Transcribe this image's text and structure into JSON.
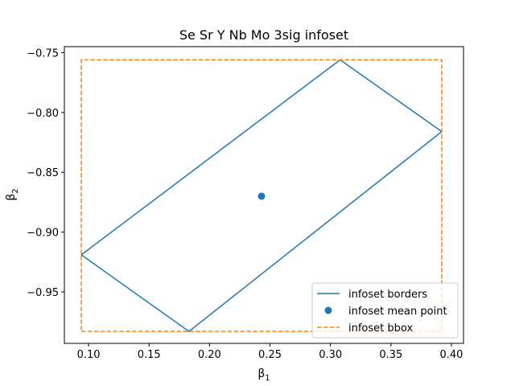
{
  "chart_data": {
    "type": "line",
    "title": "Se Sr Y Nb Mo 3sig infoset",
    "xlabel_base": "β",
    "xlabel_sub": "1",
    "ylabel_base": "β",
    "ylabel_sub": "2",
    "xlim": [
      0.08,
      0.41
    ],
    "ylim": [
      -0.993,
      -0.745
    ],
    "xticks": [
      0.1,
      0.15,
      0.2,
      0.25,
      0.3,
      0.35,
      0.4
    ],
    "xtick_labels": [
      "0.10",
      "0.15",
      "0.20",
      "0.25",
      "0.30",
      "0.35",
      "0.40"
    ],
    "yticks": [
      -0.95,
      -0.9,
      -0.85,
      -0.8,
      -0.75
    ],
    "ytick_labels": [
      "−0.95",
      "−0.90",
      "−0.85",
      "−0.80",
      "−0.75"
    ],
    "grid": false,
    "legend_position": "lower-right",
    "series": [
      {
        "name": "infoset borders",
        "kind": "line",
        "color": "#1f77b4",
        "points": [
          [
            0.094,
            -0.919
          ],
          [
            0.308,
            -0.756
          ],
          [
            0.392,
            -0.816
          ],
          [
            0.183,
            -0.983
          ],
          [
            0.094,
            -0.919
          ]
        ]
      },
      {
        "name": "infoset mean point",
        "kind": "scatter",
        "color": "#1f77b4",
        "points": [
          [
            0.243,
            -0.87
          ]
        ]
      },
      {
        "name": "infoset bbox",
        "kind": "dashed-line",
        "color": "#ff7f0e",
        "points": [
          [
            0.094,
            -0.983
          ],
          [
            0.392,
            -0.983
          ],
          [
            0.392,
            -0.756
          ],
          [
            0.094,
            -0.756
          ],
          [
            0.094,
            -0.983
          ]
        ]
      }
    ]
  }
}
